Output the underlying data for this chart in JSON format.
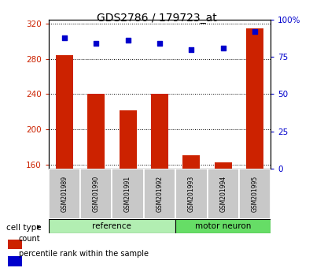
{
  "title": "GDS2786 / 179723_at",
  "samples": [
    "GSM201989",
    "GSM201990",
    "GSM201991",
    "GSM201992",
    "GSM201993",
    "GSM201994",
    "GSM201995"
  ],
  "counts": [
    284,
    240,
    222,
    240,
    170,
    162,
    315
  ],
  "percentile_ranks": [
    88,
    84,
    86,
    84,
    80,
    81,
    92
  ],
  "ref_count": 4,
  "mn_count": 3,
  "ylim_left": [
    155,
    325
  ],
  "ylim_right": [
    0,
    100
  ],
  "yticks_left": [
    160,
    200,
    240,
    280,
    320
  ],
  "yticks_right": [
    0,
    25,
    50,
    75,
    100
  ],
  "bar_color": "#CC2200",
  "dot_color": "#0000CC",
  "bar_width": 0.55,
  "ref_color": "#B2EEB2",
  "mn_color": "#66DD66",
  "gray_bg": "#C8C8C8",
  "legend_count_label": "count",
  "legend_percentile_label": "percentile rank within the sample",
  "cell_type_label": "cell type"
}
